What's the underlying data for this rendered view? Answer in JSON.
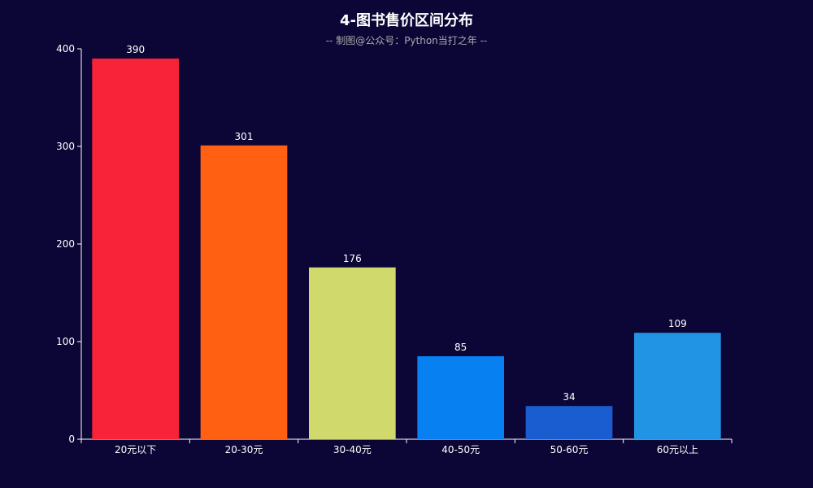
{
  "chart_data": {
    "type": "bar",
    "title": "4-图书售价区间分布",
    "subtitle": "-- 制图@公众号：Python当打之年 --",
    "categories": [
      "20元以下",
      "20-30元",
      "30-40元",
      "40-50元",
      "50-60元",
      "60元以上"
    ],
    "values": [
      390,
      301,
      176,
      85,
      34,
      109
    ],
    "colors": [
      "#f92339",
      "#ff6012",
      "#d0d96c",
      "#0780f2",
      "#1a5dd1",
      "#2195e3"
    ],
    "ylim": [
      0,
      400
    ],
    "yticks": [
      0,
      100,
      200,
      300,
      400
    ],
    "grid": false,
    "legend": "none",
    "background": "#0c0636"
  }
}
